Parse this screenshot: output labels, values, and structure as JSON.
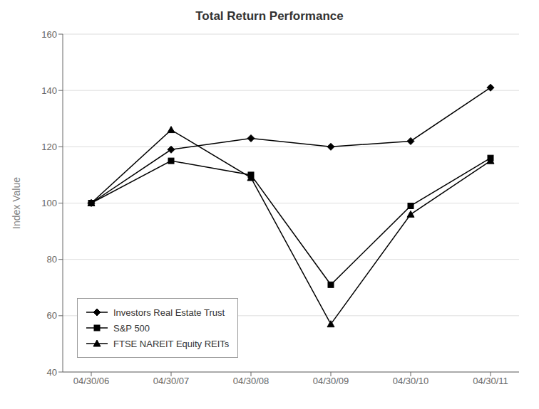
{
  "chart_data": {
    "type": "line",
    "title": "Total Return Performance",
    "ylabel": "Index Value",
    "categories": [
      "04/30/06",
      "04/30/07",
      "04/30/08",
      "04/30/09",
      "04/30/10",
      "04/30/11"
    ],
    "series": [
      {
        "name": "Investors Real Estate Trust",
        "color": "#000000",
        "marker": "diamond",
        "values": [
          100,
          119,
          123,
          120,
          122,
          141
        ]
      },
      {
        "name": "S&P 500",
        "color": "#000000",
        "marker": "square",
        "values": [
          100,
          115,
          110,
          71,
          99,
          116
        ]
      },
      {
        "name": "FTSE NAREIT Equity REITs",
        "color": "#000000",
        "marker": "triangle",
        "values": [
          100,
          126,
          109,
          57,
          96,
          115
        ]
      }
    ],
    "ylim": [
      40,
      160
    ],
    "yticks": [
      40,
      60,
      80,
      100,
      120,
      140,
      160
    ],
    "grid": true,
    "legend": "lower left"
  }
}
